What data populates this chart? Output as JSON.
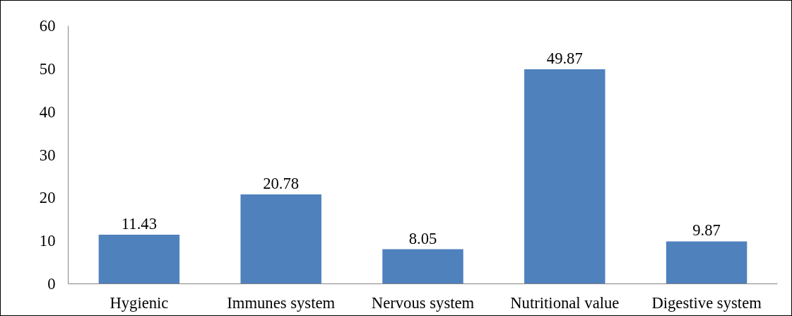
{
  "chart_data": {
    "type": "bar",
    "categories": [
      "Hygienic",
      "Immunes system",
      "Nervous system",
      "Nutritional value",
      "Digestive system"
    ],
    "values": [
      11.43,
      20.78,
      8.05,
      49.87,
      9.87
    ],
    "color": "#4f81bd",
    "ylim": [
      0,
      60
    ],
    "yticks": [
      0,
      10,
      20,
      30,
      40,
      50,
      60
    ],
    "data_labels": true
  }
}
